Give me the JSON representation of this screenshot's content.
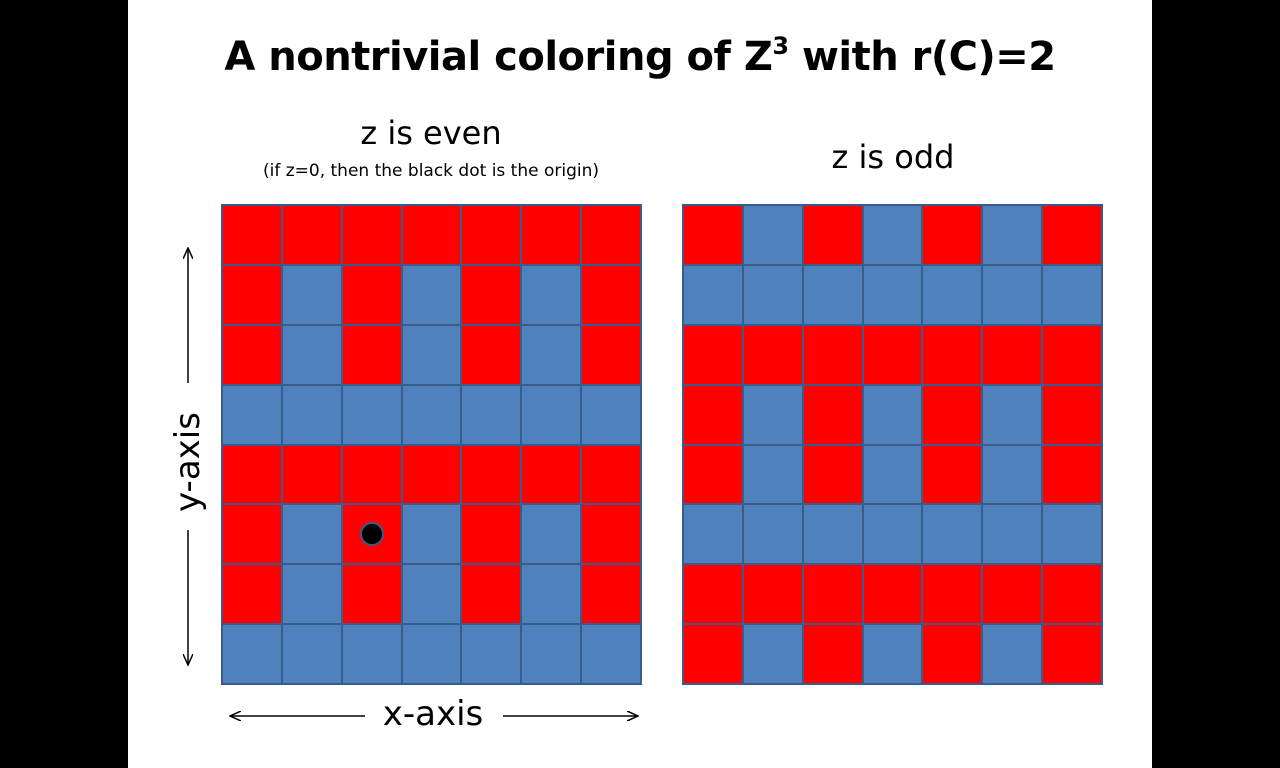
{
  "slide": {
    "title_main": "A nontrivial coloring of Z",
    "title_sup": "3",
    "title_rest": " with r(C)=2"
  },
  "panels": {
    "even": {
      "title": "z is even",
      "note": "(if z=0, then the black dot is the origin)",
      "rows": [
        "RRRRRRR",
        "RBRBRBR",
        "RBRBRBR",
        "BBBBBBB",
        "RRRRRRR",
        "RBRBRBR",
        "RBRBRBR",
        "BBBBBBB"
      ],
      "origin_dot": {
        "row": 5,
        "col": 2
      }
    },
    "odd": {
      "title": "z is odd",
      "rows": [
        "RBRBRBR",
        "BBBBBBB",
        "RRRRRRR",
        "RBRBRBR",
        "RBRBRBR",
        "BBBBBBB",
        "RRRRRRR",
        "RBRBRBR"
      ]
    }
  },
  "axes": {
    "x_label": "x-axis",
    "y_label": "y-axis"
  },
  "colors": {
    "red": "#ff0000",
    "blue": "#4f81bd",
    "grid_line": "#385d8a"
  }
}
